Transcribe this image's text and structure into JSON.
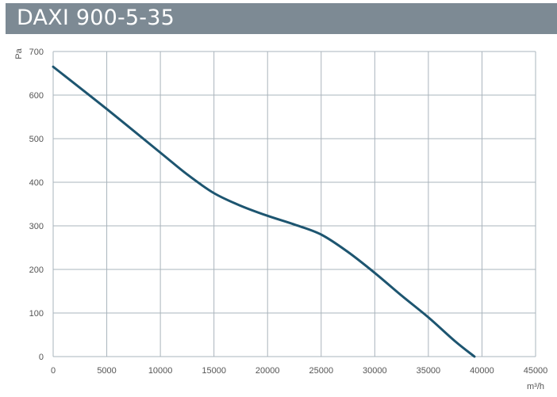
{
  "chart_data": {
    "type": "line",
    "title": "DAXI 900-5-35",
    "xlabel": "m³/h",
    "ylabel": "Pa",
    "xlim": [
      0,
      45000
    ],
    "ylim": [
      0,
      700
    ],
    "xticks": [
      "0",
      "5000",
      "10000",
      "15000",
      "20000",
      "25000",
      "30000",
      "35000",
      "40000",
      "45000"
    ],
    "yticks": [
      "0",
      "100",
      "200",
      "300",
      "400",
      "500",
      "600",
      "700"
    ],
    "grid": true,
    "colors": {
      "line": "#1d5570",
      "grid": "#aab4bc",
      "title_bar": "#7d8a94"
    },
    "series": [
      {
        "x": [
          0,
          5000,
          10000,
          12500,
          15000,
          17500,
          20000,
          22500,
          25000,
          27500,
          30000,
          32500,
          35000,
          37500,
          39300
        ],
        "y": [
          665,
          568,
          468,
          418,
          375,
          346,
          323,
          303,
          280,
          240,
          192,
          140,
          90,
          35,
          0
        ]
      }
    ]
  }
}
